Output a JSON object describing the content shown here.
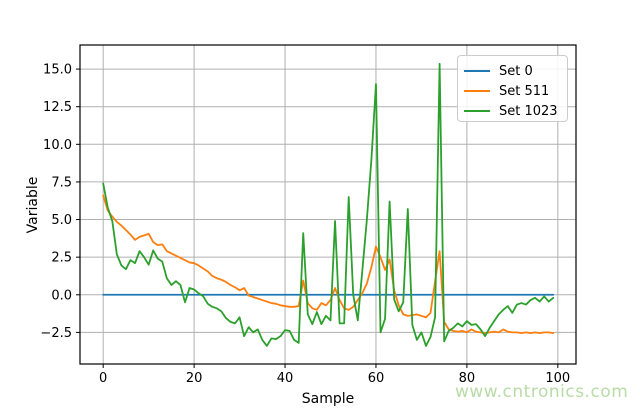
{
  "watermark": {
    "text": "www.cntronics.com",
    "color": "#b8dca6"
  },
  "chart_data": {
    "type": "line",
    "title": "",
    "xlabel": "Sample",
    "ylabel": "Variable",
    "grid": true,
    "grid_color": "#b0b0b0",
    "spine_color": "#000000",
    "legend_position": "upper right",
    "xlim": [
      -5.1,
      104.0
    ],
    "ylim": [
      -4.6,
      16.6
    ],
    "x_ticks": [
      0,
      20,
      40,
      60,
      80,
      100
    ],
    "x_tick_labels": [
      "0",
      "20",
      "40",
      "60",
      "80",
      "100"
    ],
    "y_ticks": [
      15.0,
      12.5,
      10.0,
      7.5,
      5.0,
      2.5,
      0.0,
      -2.5
    ],
    "y_tick_labels": [
      "15.0",
      "12.5",
      "10.0",
      "7.5",
      "5.0",
      "2.5",
      "0.0",
      "−2.5"
    ],
    "x_is_sample_index": true,
    "series": [
      {
        "name": "Set 0",
        "color": "#1f77b4",
        "values": [
          0,
          0,
          0,
          0,
          0,
          0,
          0,
          0,
          0,
          0,
          0,
          0,
          0,
          0,
          0,
          0,
          0,
          0,
          0,
          0,
          0,
          0,
          0,
          0,
          0,
          0,
          0,
          0,
          0,
          0,
          0,
          0,
          0,
          0,
          0,
          0,
          0,
          0,
          0,
          0,
          0,
          0,
          0,
          0,
          0,
          0,
          0,
          0,
          0,
          0,
          0,
          0,
          0,
          0,
          0,
          0,
          0,
          0,
          0,
          0,
          0,
          0,
          0,
          0,
          0,
          0,
          0,
          0,
          0,
          0,
          0,
          0,
          0,
          0,
          0,
          0,
          0,
          0,
          0,
          0,
          0,
          0,
          0,
          0,
          0,
          0,
          0,
          0,
          0,
          0,
          0,
          0,
          0,
          0,
          0,
          0,
          0,
          0,
          0,
          0
        ]
      },
      {
        "name": "Set 511",
        "color": "#ff7f0e",
        "values": [
          6.6,
          5.6,
          5.2,
          4.85,
          4.6,
          4.3,
          4.0,
          3.65,
          3.85,
          3.95,
          4.05,
          3.5,
          3.3,
          3.35,
          2.9,
          2.75,
          2.6,
          2.45,
          2.3,
          2.15,
          2.1,
          1.95,
          1.75,
          1.55,
          1.25,
          1.1,
          1.0,
          0.85,
          0.65,
          0.5,
          0.3,
          0.45,
          -0.05,
          -0.15,
          -0.25,
          -0.35,
          -0.45,
          -0.55,
          -0.6,
          -0.7,
          -0.75,
          -0.8,
          -0.8,
          -0.75,
          0.95,
          -0.55,
          -0.9,
          -1.0,
          -0.55,
          -0.7,
          -0.35,
          0.45,
          -0.35,
          -0.9,
          -1.0,
          -0.8,
          -0.35,
          0.1,
          0.75,
          1.85,
          3.2,
          2.5,
          1.65,
          2.35,
          0.3,
          -0.7,
          -1.3,
          -1.4,
          -1.35,
          -1.3,
          -1.4,
          -1.5,
          -1.2,
          0.9,
          2.9,
          -1.8,
          -2.3,
          -2.4,
          -2.45,
          -2.4,
          -2.5,
          -2.3,
          -2.45,
          -2.5,
          -2.55,
          -2.5,
          -2.45,
          -2.5,
          -2.3,
          -2.45,
          -2.5,
          -2.5,
          -2.55,
          -2.5,
          -2.55,
          -2.5,
          -2.55,
          -2.5,
          -2.5,
          -2.55
        ]
      },
      {
        "name": "Set 1023",
        "color": "#2ca02c",
        "values": [
          7.4,
          5.8,
          4.9,
          2.7,
          1.95,
          1.7,
          2.3,
          2.1,
          2.9,
          2.5,
          2.0,
          2.95,
          2.4,
          2.2,
          1.1,
          0.65,
          0.9,
          0.65,
          -0.5,
          0.45,
          0.35,
          0.1,
          -0.1,
          -0.6,
          -0.8,
          -0.9,
          -1.1,
          -1.55,
          -1.8,
          -1.9,
          -1.5,
          -2.75,
          -2.15,
          -2.5,
          -2.3,
          -3.0,
          -3.4,
          -2.9,
          -2.95,
          -2.75,
          -2.35,
          -2.4,
          -3.0,
          -3.2,
          4.1,
          -1.3,
          -1.95,
          -1.15,
          -1.95,
          -1.4,
          -1.7,
          4.9,
          -1.9,
          -1.9,
          6.5,
          0.0,
          -1.7,
          1.6,
          5.0,
          9.0,
          14.0,
          -2.5,
          -1.6,
          6.2,
          -0.3,
          -1.1,
          -0.5,
          5.7,
          -2.0,
          -3.0,
          -2.5,
          -3.4,
          -2.8,
          -1.5,
          15.35,
          -3.1,
          -2.4,
          -2.2,
          -1.9,
          -2.1,
          -1.75,
          -2.0,
          -1.95,
          -2.3,
          -2.75,
          -2.2,
          -1.75,
          -1.3,
          -1.0,
          -0.75,
          -1.2,
          -0.65,
          -0.55,
          -0.65,
          -0.35,
          -0.2,
          -0.45,
          -0.1,
          -0.45,
          -0.2
        ]
      }
    ]
  }
}
